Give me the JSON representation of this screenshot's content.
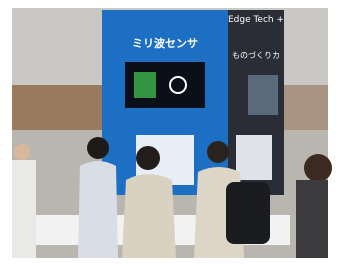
{
  "signs": {
    "main": "ミリ波センサ",
    "side": "Edge Tech +",
    "side_sub": "ものづくりカ"
  }
}
